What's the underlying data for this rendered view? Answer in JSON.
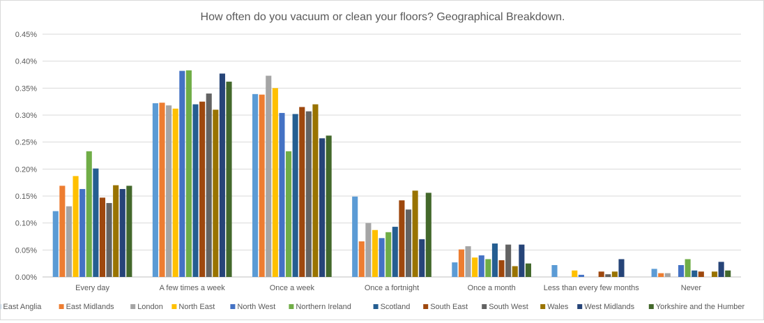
{
  "chart_data": {
    "type": "bar",
    "title": "How often do you vacuum or clean your floors? Geographical Breakdown.",
    "xlabel": "",
    "ylabel": "",
    "ylim": [
      0,
      0.45
    ],
    "yticks": [
      "0.00%",
      "0.05%",
      "0.10%",
      "0.15%",
      "0.20%",
      "0.25%",
      "0.30%",
      "0.35%",
      "0.40%",
      "0.45%"
    ],
    "grid": true,
    "legend": "bottom",
    "categories": [
      "Every day",
      "A few times a week",
      "Once a week",
      "Once a fortnight",
      "Once a month",
      "Less than every few months",
      "Never"
    ],
    "series": [
      {
        "name": "East Anglia",
        "color": "#5b9bd5",
        "values": [
          0.122,
          0.322,
          0.339,
          0.149,
          0.027,
          0.022,
          0.015
        ]
      },
      {
        "name": "East Midlands",
        "color": "#ed7d31",
        "values": [
          0.169,
          0.323,
          0.338,
          0.066,
          0.051,
          0.0,
          0.007
        ]
      },
      {
        "name": "London",
        "color": "#a5a5a5",
        "values": [
          0.131,
          0.318,
          0.373,
          0.1,
          0.057,
          0.0,
          0.007
        ]
      },
      {
        "name": "North East",
        "color": "#ffc000",
        "values": [
          0.187,
          0.312,
          0.35,
          0.087,
          0.036,
          0.012,
          0.0
        ]
      },
      {
        "name": "North West",
        "color": "#4472c4",
        "values": [
          0.163,
          0.382,
          0.304,
          0.072,
          0.04,
          0.004,
          0.022
        ]
      },
      {
        "name": "Northern Ireland",
        "color": "#70ad47",
        "values": [
          0.233,
          0.383,
          0.233,
          0.083,
          0.033,
          0.0,
          0.033
        ]
      },
      {
        "name": "Scotland",
        "color": "#255e91",
        "values": [
          0.201,
          0.32,
          0.302,
          0.093,
          0.062,
          0.0,
          0.012
        ]
      },
      {
        "name": "South East",
        "color": "#9e480e",
        "values": [
          0.147,
          0.325,
          0.315,
          0.142,
          0.031,
          0.01,
          0.01
        ]
      },
      {
        "name": "South West",
        "color": "#636363",
        "values": [
          0.137,
          0.34,
          0.307,
          0.125,
          0.06,
          0.005,
          0.0
        ]
      },
      {
        "name": "Wales",
        "color": "#997300",
        "values": [
          0.17,
          0.31,
          0.32,
          0.16,
          0.02,
          0.01,
          0.01
        ]
      },
      {
        "name": "West Midlands",
        "color": "#264478",
        "values": [
          0.163,
          0.377,
          0.257,
          0.07,
          0.06,
          0.033,
          0.028
        ]
      },
      {
        "name": "Yorkshire and the Humber",
        "color": "#43682b",
        "values": [
          0.169,
          0.362,
          0.262,
          0.156,
          0.025,
          0.0,
          0.012
        ]
      }
    ]
  }
}
